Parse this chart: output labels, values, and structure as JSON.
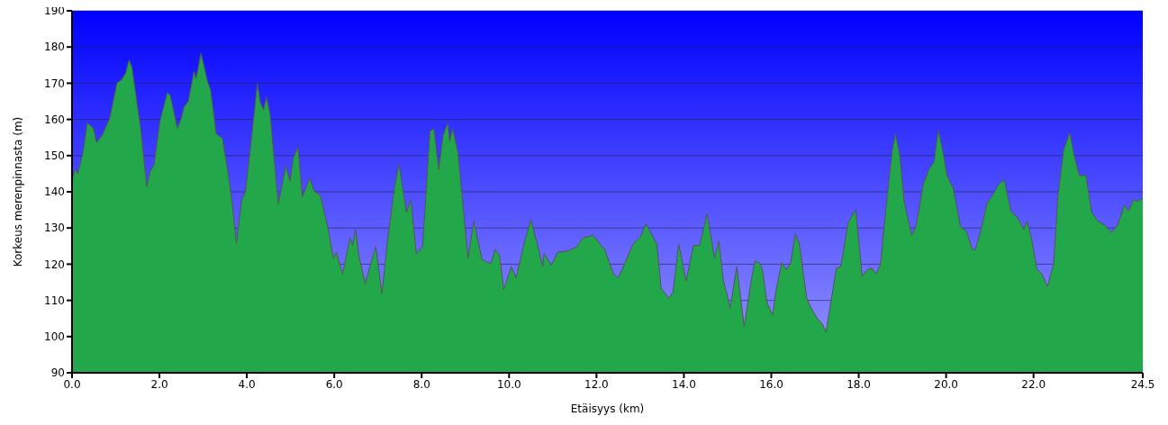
{
  "chart_data": {
    "type": "area",
    "xlabel": "Etäisyys (km)",
    "ylabel": "Korkeus merenpinnasta (m)",
    "x": [
      0,
      0.08,
      0.13,
      0.25,
      0.35,
      0.49,
      0.56,
      0.69,
      0.86,
      1.03,
      1.13,
      1.23,
      1.3,
      1.37,
      1.57,
      1.71,
      1.78,
      1.88,
      2.01,
      2.18,
      2.25,
      2.41,
      2.5,
      2.56,
      2.66,
      2.79,
      2.84,
      2.95,
      3.1,
      3.17,
      3.3,
      3.44,
      3.57,
      3.67,
      3.76,
      3.88,
      3.97,
      4.08,
      4.24,
      4.31,
      4.38,
      4.45,
      4.53,
      4.72,
      4.89,
      4.99,
      5.06,
      5.17,
      5.27,
      5.44,
      5.54,
      5.68,
      5.85,
      5.98,
      6.05,
      6.19,
      6.36,
      6.42,
      6.49,
      6.56,
      6.71,
      6.86,
      6.95,
      7.09,
      7.21,
      7.38,
      7.48,
      7.65,
      7.75,
      7.88,
      8.02,
      8.19,
      8.28,
      8.39,
      8.49,
      8.6,
      8.64,
      8.71,
      8.83,
      9.06,
      9.19,
      9.38,
      9.58,
      9.68,
      9.78,
      9.88,
      10.05,
      10.16,
      10.36,
      10.5,
      10.66,
      10.77,
      10.8,
      10.97,
      11.11,
      11.34,
      11.55,
      11.68,
      11.92,
      12.19,
      12.39,
      12.5,
      12.84,
      13.01,
      13.13,
      13.38,
      13.48,
      13.65,
      13.75,
      13.88,
      14.05,
      14.22,
      14.36,
      14.53,
      14.7,
      14.8,
      14.9,
      15.06,
      15.21,
      15.38,
      15.55,
      15.63,
      15.75,
      15.8,
      15.9,
      16.03,
      16.1,
      16.24,
      16.34,
      16.44,
      16.55,
      16.64,
      16.81,
      16.91,
      17.05,
      17.18,
      17.25,
      17.49,
      17.59,
      17.76,
      17.93,
      18.08,
      18.2,
      18.3,
      18.4,
      18.5,
      18.64,
      18.77,
      18.84,
      18.94,
      19.04,
      19.21,
      19.31,
      19.48,
      19.62,
      19.72,
      19.82,
      19.92,
      20.02,
      20.16,
      20.33,
      20.46,
      20.6,
      20.67,
      20.8,
      20.94,
      21.04,
      21.21,
      21.33,
      21.48,
      21.64,
      21.78,
      21.85,
      21.95,
      22.08,
      22.19,
      22.32,
      22.46,
      22.56,
      22.69,
      22.83,
      22.93,
      23.05,
      23.2,
      23.33,
      23.47,
      23.64,
      23.77,
      23.91,
      24.08,
      24.18,
      24.28,
      24.38,
      24.5
    ],
    "series": [
      {
        "color": "#22a84a",
        "values": [
          143.7,
          146.1,
          145,
          150.8,
          159.1,
          157.5,
          153.6,
          155.6,
          160.3,
          170.1,
          170.9,
          172.9,
          176.4,
          174.5,
          157.5,
          141.4,
          145.3,
          147.7,
          159.5,
          167.4,
          166.6,
          157.5,
          160.3,
          163.4,
          165,
          173.3,
          171.3,
          178.4,
          170.5,
          168.2,
          156,
          154.8,
          145.3,
          136.3,
          125.8,
          137.5,
          140.2,
          152,
          169.9,
          164.6,
          162.7,
          166.2,
          161.5,
          136.7,
          147.1,
          143,
          149.3,
          152.4,
          138.6,
          143.7,
          140.2,
          139,
          130.3,
          121.7,
          123.3,
          117.3,
          127.2,
          125.2,
          129.6,
          122.5,
          114.6,
          121.3,
          124.8,
          111.8,
          125.6,
          141.4,
          147.7,
          134.3,
          137.8,
          122.9,
          124.8,
          156.7,
          157.5,
          146.1,
          155.6,
          159.1,
          154,
          157.5,
          150.8,
          121.7,
          131.9,
          121.3,
          120.1,
          124,
          122.5,
          113,
          119.3,
          116.2,
          126.4,
          132.3,
          124.8,
          119.3,
          122.9,
          119.7,
          123.3,
          123.6,
          124.8,
          127.2,
          128,
          124,
          117.3,
          116.2,
          125.6,
          127.6,
          131.1,
          125.6,
          113.4,
          110.6,
          112.2,
          125.6,
          115.4,
          125.2,
          125.2,
          133.9,
          121.7,
          126.4,
          115.8,
          107.9,
          119.3,
          102.8,
          116.2,
          120.9,
          120.1,
          118.1,
          109.5,
          105.9,
          112.2,
          120.5,
          118.5,
          120.1,
          128.4,
          125.6,
          110.6,
          107.9,
          105.1,
          103.2,
          101.2,
          118.9,
          119.3,
          131.5,
          135.1,
          116.6,
          118.5,
          118.9,
          117.3,
          120.1,
          137.4,
          151.6,
          156,
          150,
          137.4,
          128,
          130.3,
          142.2,
          146.5,
          148.1,
          157.1,
          151.6,
          144.5,
          141,
          130.3,
          129.2,
          124,
          124,
          129.6,
          137,
          138.6,
          142.2,
          143.3,
          134.7,
          132.7,
          129.6,
          132,
          127.2,
          118.5,
          117.3,
          113.8,
          120.1,
          139,
          151.6,
          156.4,
          150,
          144.5,
          144.5,
          134.3,
          131.9,
          130.7,
          128.8,
          130.3,
          136.3,
          134.7,
          137.8,
          137.4,
          138.2
        ]
      }
    ],
    "xlim": [
      0,
      24.5
    ],
    "xticks": [
      {
        "value": 0,
        "label": "0.0"
      },
      {
        "value": 2,
        "label": "2.0"
      },
      {
        "value": 4,
        "label": "4.0"
      },
      {
        "value": 6,
        "label": "6.0"
      },
      {
        "value": 8,
        "label": "8.0"
      },
      {
        "value": 10,
        "label": "10.0"
      },
      {
        "value": 12,
        "label": "12.0"
      },
      {
        "value": 14,
        "label": "14.0"
      },
      {
        "value": 16,
        "label": "16.0"
      },
      {
        "value": 18,
        "label": "18.0"
      },
      {
        "value": 20,
        "label": "20.0"
      },
      {
        "value": 22,
        "label": "22.0"
      },
      {
        "value": 24.5,
        "label": "24.5"
      }
    ],
    "ylim": [
      90,
      190
    ],
    "yticks": [
      90,
      100,
      110,
      120,
      130,
      140,
      150,
      160,
      170,
      180,
      190
    ],
    "grid": "y"
  }
}
